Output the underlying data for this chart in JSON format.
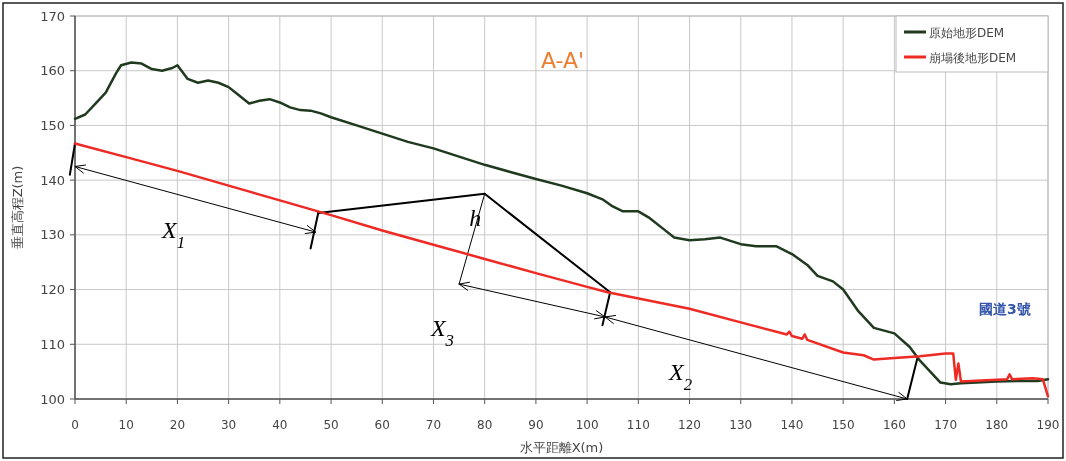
{
  "chart_data": {
    "type": "line",
    "title": "A-A'",
    "xlabel": "水平距離X(m)",
    "ylabel": "垂直高程Z(m)",
    "xlim": [
      0,
      190
    ],
    "xticks": [
      0,
      10,
      20,
      30,
      40,
      50,
      60,
      70,
      80,
      90,
      100,
      110,
      120,
      130,
      140,
      150,
      160,
      170,
      180,
      190
    ],
    "ylim": [
      100,
      170
    ],
    "yticks": [
      100,
      110,
      120,
      130,
      140,
      150,
      160,
      170
    ],
    "grid": true,
    "legend": "top right",
    "annotations": [
      "國道3號",
      "X$_{1}$",
      {
        "text": "h",
        "x": 77,
        "y": 126.4
      },
      "X$_{3}$",
      "X$_{2}$"
    ],
    "series": [
      {
        "name": "原始地形DEM",
        "color": "#1f3a1f",
        "x": [
          0,
          2,
          4,
          6,
          8,
          9,
          11,
          13,
          15,
          17,
          19,
          20,
          22,
          24,
          26,
          28,
          30,
          32,
          34,
          36,
          38,
          40,
          42,
          44,
          46,
          48,
          50,
          55,
          60,
          65,
          70,
          75,
          80,
          85,
          90,
          95,
          100,
          103,
          105,
          107,
          110,
          112,
          115,
          117,
          120,
          123,
          126,
          130,
          133,
          137,
          140,
          143,
          145,
          148,
          150,
          153,
          156,
          160,
          163,
          165,
          167,
          169,
          171,
          173,
          176,
          180,
          185,
          188,
          190
        ],
        "values": [
          151.2,
          152,
          154,
          156,
          159.5,
          161,
          161.5,
          161.3,
          160.3,
          160,
          160.5,
          161,
          158.5,
          157.8,
          158.2,
          157.8,
          157,
          155.5,
          154,
          154.5,
          154.8,
          154.2,
          153.3,
          152.8,
          152.7,
          152.2,
          151.5,
          150,
          148.5,
          147,
          145.8,
          144.3,
          142.8,
          141.5,
          140.2,
          139,
          137.6,
          136.5,
          135.2,
          134.3,
          134.3,
          133.2,
          131,
          129.5,
          129,
          129.2,
          129.5,
          128.3,
          127.9,
          127.9,
          126.5,
          124.5,
          122.5,
          121.5,
          120,
          116,
          113,
          112,
          109.5,
          107,
          105,
          103,
          102.7,
          102.9,
          103,
          103.2,
          103.3,
          103.3,
          103.6
        ]
      },
      {
        "name": "崩塌後地形DEM",
        "color": "#ee2a24",
        "x": [
          0,
          10,
          20,
          30,
          40,
          50,
          60,
          70,
          80,
          90,
          100,
          104,
          120,
          130,
          139,
          139.5,
          140,
          142,
          142.5,
          143,
          150,
          154,
          156,
          160,
          165,
          170,
          171.5,
          172,
          172.5,
          173,
          180,
          182,
          182.5,
          183,
          187,
          189,
          190
        ],
        "values": [
          146.7,
          144.2,
          141.7,
          139,
          136.3,
          133.6,
          130.8,
          128.2,
          125.6,
          123,
          120.5,
          119.5,
          116.5,
          114,
          111.8,
          112.3,
          111.5,
          111,
          111.8,
          110.8,
          108.5,
          108,
          107.2,
          107.5,
          107.8,
          108.3,
          108.3,
          103.5,
          106.5,
          103.2,
          103.5,
          103.6,
          104.5,
          103.6,
          103.8,
          103.6,
          100.5
        ]
      }
    ]
  }
}
